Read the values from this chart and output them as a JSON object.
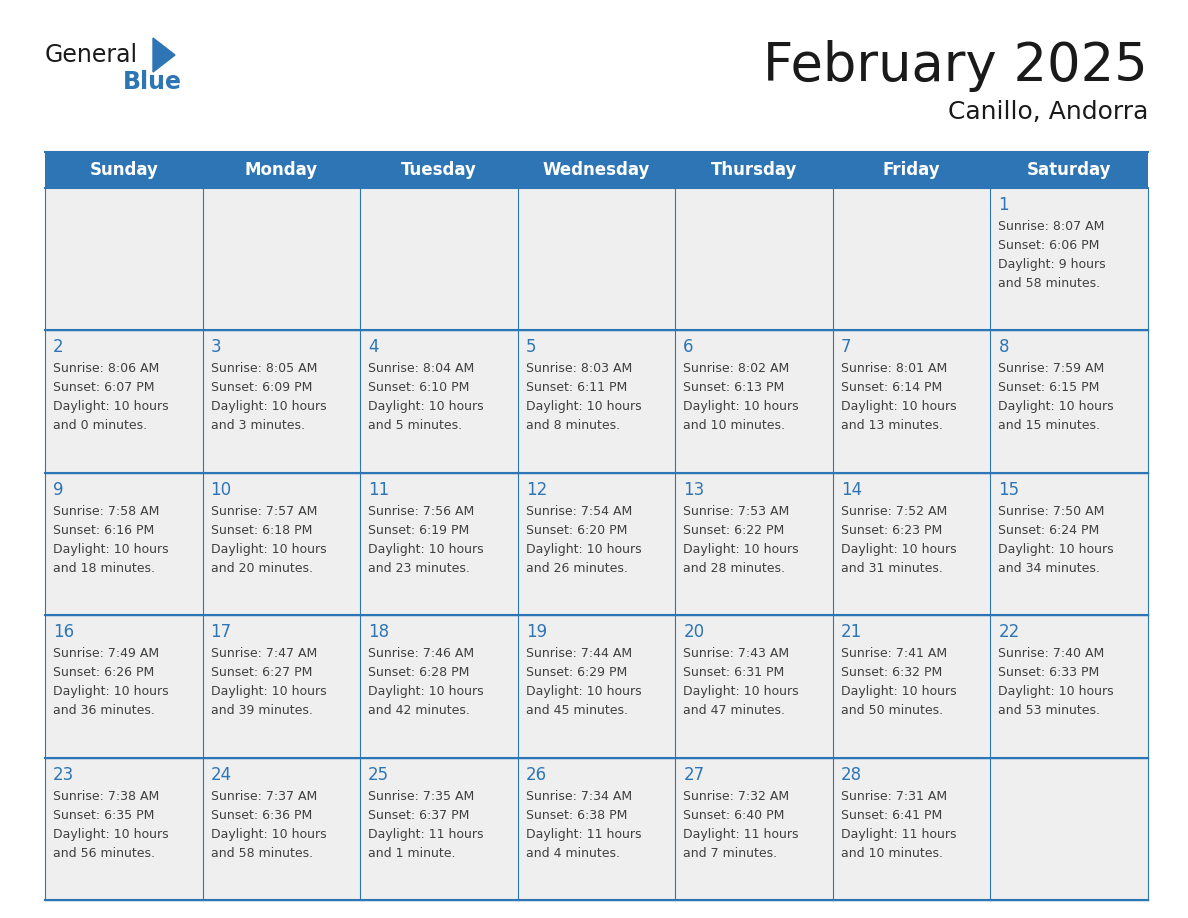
{
  "title": "February 2025",
  "subtitle": "Canillo, Andorra",
  "days_of_week": [
    "Sunday",
    "Monday",
    "Tuesday",
    "Wednesday",
    "Thursday",
    "Friday",
    "Saturday"
  ],
  "header_bg": "#2E75B6",
  "header_text_color": "#FFFFFF",
  "cell_bg": "#EFEFEF",
  "cell_border_color": "#2E75B6",
  "day_number_color": "#2E75B6",
  "info_text_color": "#404040",
  "title_color": "#1a1a1a",
  "logo_text_color": "#1a1a1a",
  "logo_blue_color": "#2E75B6",
  "calendar": [
    [
      null,
      null,
      null,
      null,
      null,
      null,
      {
        "day": 1,
        "sunrise": "8:07 AM",
        "sunset": "6:06 PM",
        "daylight_line1": "9 hours",
        "daylight_line2": "and 58 minutes."
      }
    ],
    [
      {
        "day": 2,
        "sunrise": "8:06 AM",
        "sunset": "6:07 PM",
        "daylight_line1": "10 hours",
        "daylight_line2": "and 0 minutes."
      },
      {
        "day": 3,
        "sunrise": "8:05 AM",
        "sunset": "6:09 PM",
        "daylight_line1": "10 hours",
        "daylight_line2": "and 3 minutes."
      },
      {
        "day": 4,
        "sunrise": "8:04 AM",
        "sunset": "6:10 PM",
        "daylight_line1": "10 hours",
        "daylight_line2": "and 5 minutes."
      },
      {
        "day": 5,
        "sunrise": "8:03 AM",
        "sunset": "6:11 PM",
        "daylight_line1": "10 hours",
        "daylight_line2": "and 8 minutes."
      },
      {
        "day": 6,
        "sunrise": "8:02 AM",
        "sunset": "6:13 PM",
        "daylight_line1": "10 hours",
        "daylight_line2": "and 10 minutes."
      },
      {
        "day": 7,
        "sunrise": "8:01 AM",
        "sunset": "6:14 PM",
        "daylight_line1": "10 hours",
        "daylight_line2": "and 13 minutes."
      },
      {
        "day": 8,
        "sunrise": "7:59 AM",
        "sunset": "6:15 PM",
        "daylight_line1": "10 hours",
        "daylight_line2": "and 15 minutes."
      }
    ],
    [
      {
        "day": 9,
        "sunrise": "7:58 AM",
        "sunset": "6:16 PM",
        "daylight_line1": "10 hours",
        "daylight_line2": "and 18 minutes."
      },
      {
        "day": 10,
        "sunrise": "7:57 AM",
        "sunset": "6:18 PM",
        "daylight_line1": "10 hours",
        "daylight_line2": "and 20 minutes."
      },
      {
        "day": 11,
        "sunrise": "7:56 AM",
        "sunset": "6:19 PM",
        "daylight_line1": "10 hours",
        "daylight_line2": "and 23 minutes."
      },
      {
        "day": 12,
        "sunrise": "7:54 AM",
        "sunset": "6:20 PM",
        "daylight_line1": "10 hours",
        "daylight_line2": "and 26 minutes."
      },
      {
        "day": 13,
        "sunrise": "7:53 AM",
        "sunset": "6:22 PM",
        "daylight_line1": "10 hours",
        "daylight_line2": "and 28 minutes."
      },
      {
        "day": 14,
        "sunrise": "7:52 AM",
        "sunset": "6:23 PM",
        "daylight_line1": "10 hours",
        "daylight_line2": "and 31 minutes."
      },
      {
        "day": 15,
        "sunrise": "7:50 AM",
        "sunset": "6:24 PM",
        "daylight_line1": "10 hours",
        "daylight_line2": "and 34 minutes."
      }
    ],
    [
      {
        "day": 16,
        "sunrise": "7:49 AM",
        "sunset": "6:26 PM",
        "daylight_line1": "10 hours",
        "daylight_line2": "and 36 minutes."
      },
      {
        "day": 17,
        "sunrise": "7:47 AM",
        "sunset": "6:27 PM",
        "daylight_line1": "10 hours",
        "daylight_line2": "and 39 minutes."
      },
      {
        "day": 18,
        "sunrise": "7:46 AM",
        "sunset": "6:28 PM",
        "daylight_line1": "10 hours",
        "daylight_line2": "and 42 minutes."
      },
      {
        "day": 19,
        "sunrise": "7:44 AM",
        "sunset": "6:29 PM",
        "daylight_line1": "10 hours",
        "daylight_line2": "and 45 minutes."
      },
      {
        "day": 20,
        "sunrise": "7:43 AM",
        "sunset": "6:31 PM",
        "daylight_line1": "10 hours",
        "daylight_line2": "and 47 minutes."
      },
      {
        "day": 21,
        "sunrise": "7:41 AM",
        "sunset": "6:32 PM",
        "daylight_line1": "10 hours",
        "daylight_line2": "and 50 minutes."
      },
      {
        "day": 22,
        "sunrise": "7:40 AM",
        "sunset": "6:33 PM",
        "daylight_line1": "10 hours",
        "daylight_line2": "and 53 minutes."
      }
    ],
    [
      {
        "day": 23,
        "sunrise": "7:38 AM",
        "sunset": "6:35 PM",
        "daylight_line1": "10 hours",
        "daylight_line2": "and 56 minutes."
      },
      {
        "day": 24,
        "sunrise": "7:37 AM",
        "sunset": "6:36 PM",
        "daylight_line1": "10 hours",
        "daylight_line2": "and 58 minutes."
      },
      {
        "day": 25,
        "sunrise": "7:35 AM",
        "sunset": "6:37 PM",
        "daylight_line1": "11 hours",
        "daylight_line2": "and 1 minute."
      },
      {
        "day": 26,
        "sunrise": "7:34 AM",
        "sunset": "6:38 PM",
        "daylight_line1": "11 hours",
        "daylight_line2": "and 4 minutes."
      },
      {
        "day": 27,
        "sunrise": "7:32 AM",
        "sunset": "6:40 PM",
        "daylight_line1": "11 hours",
        "daylight_line2": "and 7 minutes."
      },
      {
        "day": 28,
        "sunrise": "7:31 AM",
        "sunset": "6:41 PM",
        "daylight_line1": "11 hours",
        "daylight_line2": "and 10 minutes."
      },
      null
    ]
  ]
}
